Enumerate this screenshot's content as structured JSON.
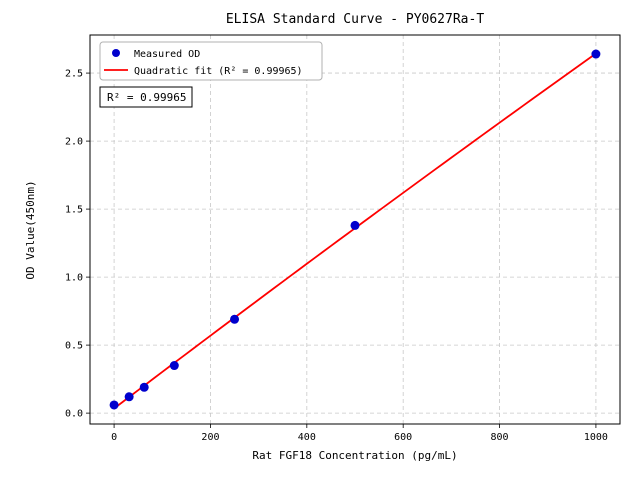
{
  "chart_data": {
    "type": "scatter",
    "title": "ELISA Standard Curve - PY0627Ra-T",
    "xlabel": "Rat FGF18 Concentration (pg/mL)",
    "ylabel": "OD Value(450nm)",
    "x": [
      0,
      31.25,
      62.5,
      125,
      250,
      500,
      1000
    ],
    "series": [
      {
        "name": "Measured OD",
        "values": [
          0.06,
          0.12,
          0.19,
          0.35,
          0.69,
          1.38,
          2.64
        ]
      }
    ],
    "fit": {
      "name": "Quadratic fit",
      "kind": "quadratic",
      "r_squared": 0.99965
    },
    "xlim": [
      -50,
      1050
    ],
    "ylim": [
      -0.08,
      2.78
    ],
    "xticks": [
      0,
      200,
      400,
      600,
      800,
      1000
    ],
    "yticks": [
      0,
      0.5,
      1.0,
      1.5,
      2.0,
      2.5
    ],
    "grid": true,
    "legend_position": "upper-left",
    "legend": [
      {
        "label": "Measured OD",
        "marker": "dot",
        "color": "#0000cd"
      },
      {
        "label": "Quadratic fit (R² = 0.99965)",
        "marker": "line",
        "color": "#ff0000"
      }
    ],
    "annotation": "R² = 0.99965",
    "colors": {
      "points": "#0000cd",
      "line": "#ff0000",
      "grid": "#c8c8c8",
      "frame": "#000000"
    }
  }
}
